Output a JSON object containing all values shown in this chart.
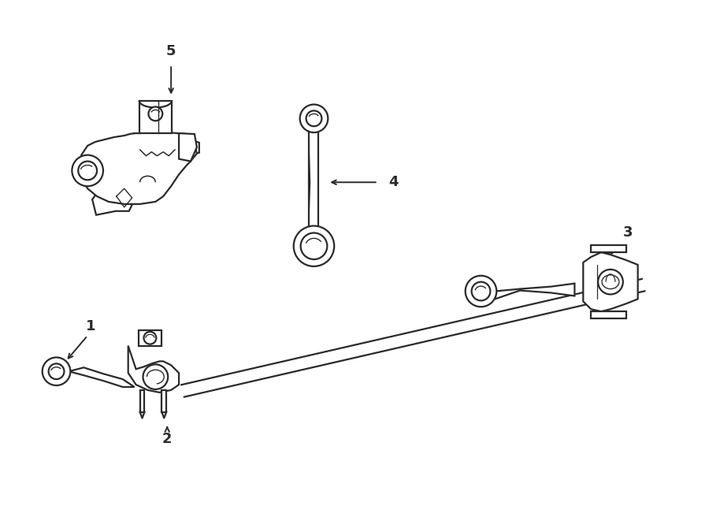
{
  "background_color": "#ffffff",
  "line_color": "#2a2a2a",
  "line_width": 1.6,
  "fig_width": 9.0,
  "fig_height": 6.61
}
